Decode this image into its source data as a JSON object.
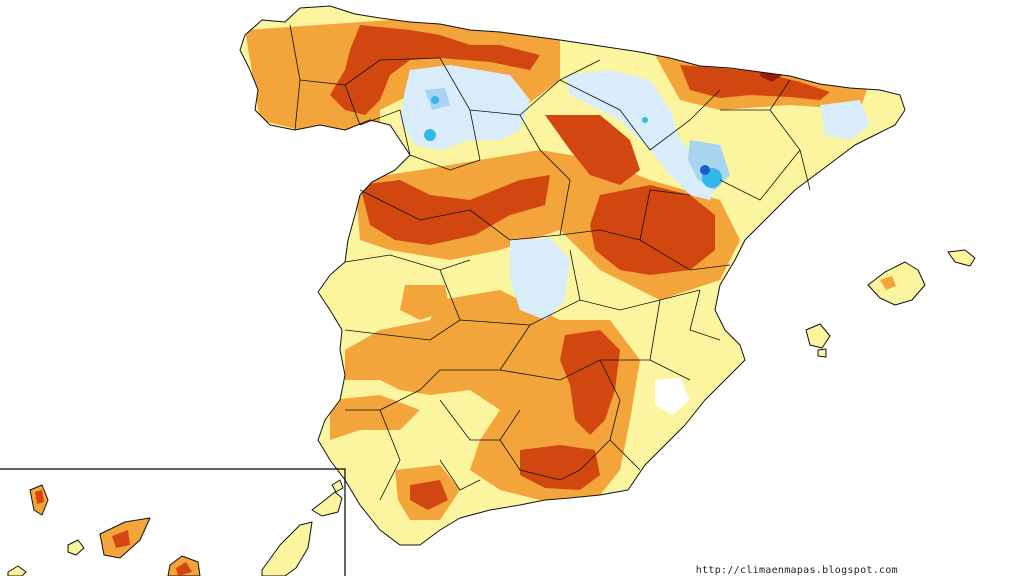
{
  "attribution": "http://climaenmapas.blogspot.com",
  "legend_colors": {
    "light_yellow": "#fbf5a0",
    "orange_light": "#f6b54a",
    "orange": "#ee8a1e",
    "dark_orange": "#d1470f",
    "dark_red": "#9a1a0d",
    "pale_blue": "#d9ecf9",
    "light_blue": "#a8d4f0",
    "blue": "#35b6e8",
    "dark_blue": "#1460c8",
    "white": "#ffffff"
  }
}
